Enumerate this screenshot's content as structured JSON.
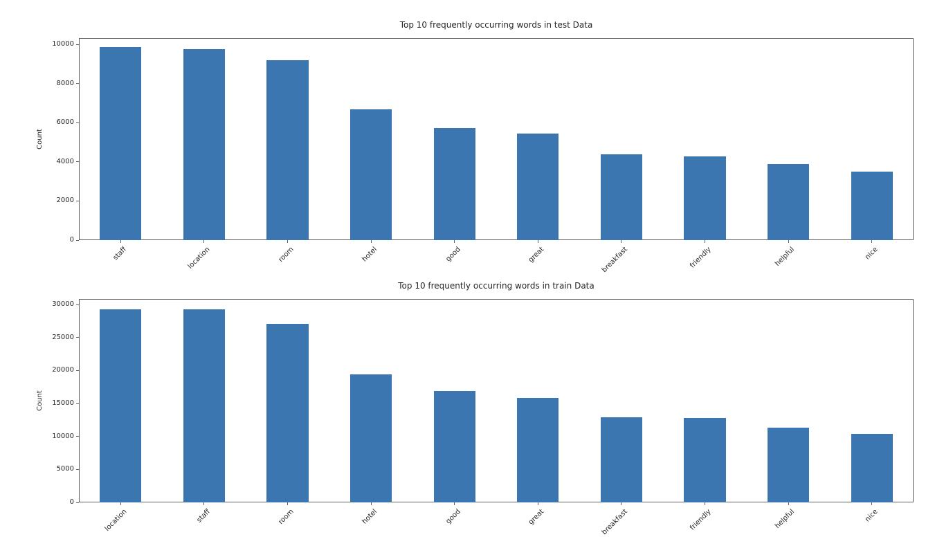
{
  "figure": {
    "background": "#ffffff",
    "colors": {
      "bar": "#3b76b1",
      "text": "#262626",
      "spine": "#5f5f5f"
    }
  },
  "chart_data": [
    {
      "type": "bar",
      "title": "Top 10 frequently occurring words in test Data",
      "xlabel": "",
      "ylabel": "Count",
      "categories": [
        "staff",
        "location",
        "room",
        "hotel",
        "good",
        "great",
        "breakfast",
        "friendly",
        "helpful",
        "nice"
      ],
      "values": [
        9850,
        9740,
        9190,
        6690,
        5720,
        5450,
        4370,
        4280,
        3890,
        3510
      ],
      "yticks": [
        0,
        2000,
        4000,
        6000,
        8000,
        10000
      ],
      "ylim": [
        0,
        10320
      ],
      "grid": false,
      "legend_position": "none",
      "bar_width_fraction": 0.5,
      "x_tick_label_rotation_deg": 45
    },
    {
      "type": "bar",
      "title": "Top 10 frequently occurring words in train Data",
      "xlabel": "",
      "ylabel": "Count",
      "categories": [
        "location",
        "staff",
        "room",
        "hotel",
        "good",
        "great",
        "breakfast",
        "friendly",
        "helpful",
        "nice"
      ],
      "values": [
        29300,
        29250,
        27100,
        19400,
        16900,
        15800,
        12950,
        12800,
        11330,
        10420
      ],
      "yticks": [
        0,
        5000,
        10000,
        15000,
        20000,
        25000,
        30000
      ],
      "ylim": [
        0,
        30840
      ],
      "grid": false,
      "legend_position": "none",
      "bar_width_fraction": 0.5,
      "x_tick_label_rotation_deg": 45
    }
  ]
}
